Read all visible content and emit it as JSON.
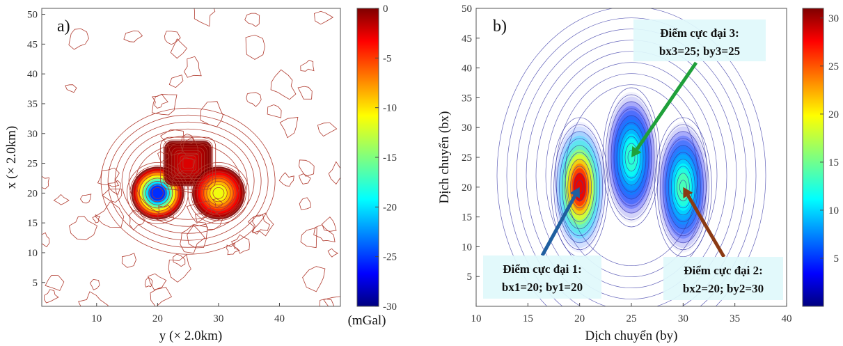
{
  "chart_data": [
    {
      "type": "heatmap",
      "panel_label": "a)",
      "render": "contour",
      "xlabel": "y (× 2.0km)",
      "ylabel": "x (× 2.0km)",
      "xlim": [
        1,
        50
      ],
      "ylim": [
        1,
        51
      ],
      "xticks": [
        "10",
        "20",
        "30",
        "40"
      ],
      "yticks": [
        "5",
        "10",
        "15",
        "20",
        "25",
        "30",
        "35",
        "40",
        "45",
        "50"
      ],
      "colorbar": {
        "min": -30,
        "max": 0,
        "ticks": [
          "0",
          "-5",
          "-10",
          "-15",
          "-20",
          "-25",
          "-30"
        ],
        "label": "(mGal)"
      },
      "anomalies": [
        {
          "y": 20,
          "x": 20,
          "value": -28,
          "shape": "round"
        },
        {
          "y": 25,
          "x": 25,
          "value": -3,
          "shape": "square"
        },
        {
          "y": 30,
          "x": 20,
          "value": -13,
          "shape": "round"
        }
      ],
      "contour_color": "#b03a2e"
    },
    {
      "type": "heatmap",
      "panel_label": "b)",
      "render": "contour",
      "xlabel": "Dịch chuyển (by)",
      "ylabel": "Dịch chuyển (bx)",
      "xlim": [
        10,
        40
      ],
      "ylim": [
        0,
        50
      ],
      "xticks": [
        "10",
        "15",
        "20",
        "25",
        "30",
        "35",
        "40"
      ],
      "yticks": [
        "5",
        "10",
        "15",
        "20",
        "25",
        "30",
        "35",
        "40",
        "45",
        "50"
      ],
      "colorbar": {
        "min": 0,
        "max": 31,
        "ticks": [
          "5",
          "10",
          "15",
          "20",
          "25",
          "30"
        ]
      },
      "peaks": [
        {
          "by": 20,
          "bx": 20,
          "value": 30
        },
        {
          "by": 25,
          "bx": 25,
          "value": 14
        },
        {
          "by": 30,
          "bx": 20,
          "value": 15
        }
      ],
      "annotations": [
        {
          "line1": "Điểm cực đại 3:",
          "line2": "bx3=25; by3=25",
          "arrow_color": "#1fa03a",
          "target": {
            "by": 25,
            "bx": 25
          }
        },
        {
          "line1": "Điểm cực đại 1:",
          "line2": "bx1=20; by1=20",
          "arrow_color": "#1f5fa0",
          "target": {
            "by": 20,
            "bx": 20
          }
        },
        {
          "line1": "Điểm cực đại 2:",
          "line2": "bx2=20; by2=30",
          "arrow_color": "#8b3a14",
          "target": {
            "by": 30,
            "bx": 20
          }
        }
      ],
      "contour_color": "#3a3aa8"
    }
  ]
}
